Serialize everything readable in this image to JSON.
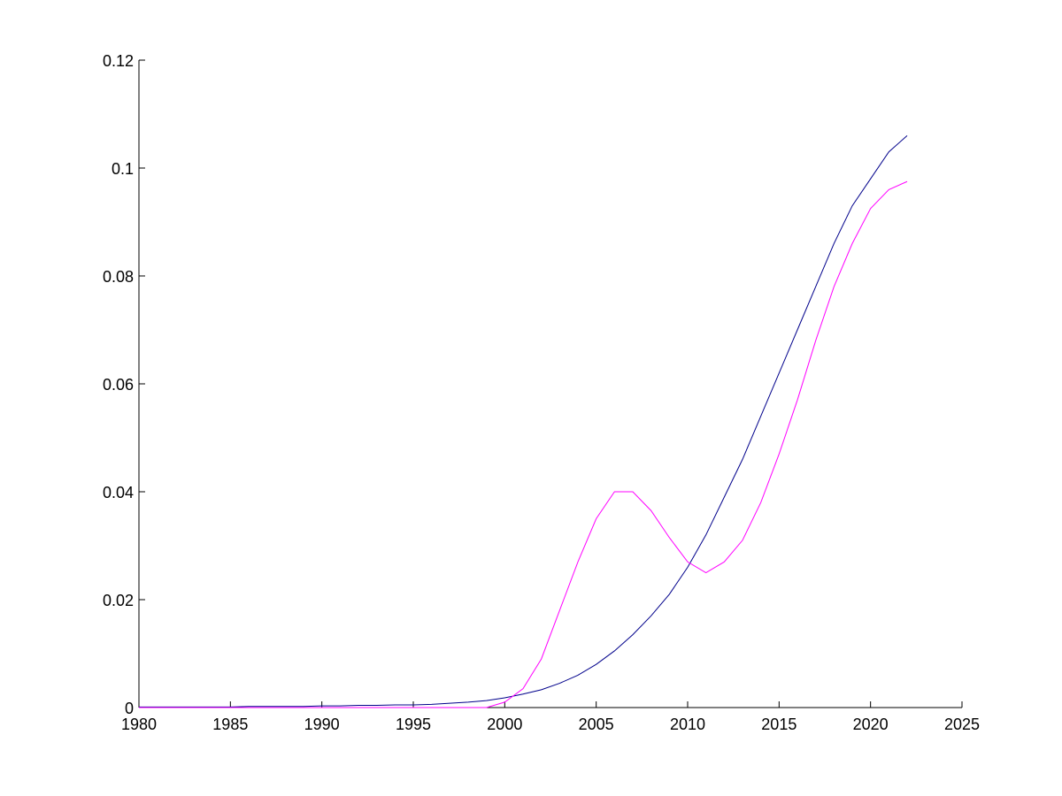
{
  "chart_data": {
    "type": "line",
    "x": [
      1980,
      1981,
      1982,
      1983,
      1984,
      1985,
      1986,
      1987,
      1988,
      1989,
      1990,
      1991,
      1992,
      1993,
      1994,
      1995,
      1996,
      1997,
      1998,
      1999,
      2000,
      2001,
      2002,
      2003,
      2004,
      2005,
      2006,
      2007,
      2008,
      2009,
      2010,
      2011,
      2012,
      2013,
      2014,
      2015,
      2016,
      2017,
      2018,
      2019,
      2020,
      2021,
      2022
    ],
    "series": [
      {
        "color": "#00008b",
        "values": [
          0.0001,
          0.0001,
          0.0001,
          0.0001,
          0.0001,
          0.0001,
          0.0002,
          0.0002,
          0.0002,
          0.0002,
          0.0003,
          0.0003,
          0.0004,
          0.0004,
          0.0005,
          0.0005,
          0.0006,
          0.0008,
          0.001,
          0.0013,
          0.0018,
          0.0025,
          0.0033,
          0.0045,
          0.006,
          0.008,
          0.0105,
          0.0135,
          0.017,
          0.021,
          0.026,
          0.032,
          0.039,
          0.046,
          0.054,
          0.062,
          0.07,
          0.078,
          0.086,
          0.093,
          0.098,
          0.103,
          0.106
        ]
      },
      {
        "color": "#ff00ff",
        "values": [
          0,
          0,
          0,
          0,
          0,
          0,
          0,
          0,
          0,
          0,
          0,
          0,
          0,
          0,
          0,
          0,
          0,
          0,
          0,
          0,
          0.001,
          0.0035,
          0.009,
          0.018,
          0.027,
          0.035,
          0.04,
          0.04,
          0.0365,
          0.0315,
          0.027,
          0.025,
          0.027,
          0.031,
          0.038,
          0.047,
          0.057,
          0.068,
          0.078,
          0.086,
          0.0925,
          0.096,
          0.0975
        ]
      }
    ],
    "xlim": [
      1980,
      2025
    ],
    "xticks": [
      1980,
      1985,
      1990,
      1995,
      2000,
      2005,
      2010,
      2015,
      2020,
      2025
    ],
    "ylim": [
      0,
      0.12
    ],
    "yticks": [
      0,
      0.02,
      0.04,
      0.06,
      0.08,
      0.1,
      0.12
    ]
  }
}
